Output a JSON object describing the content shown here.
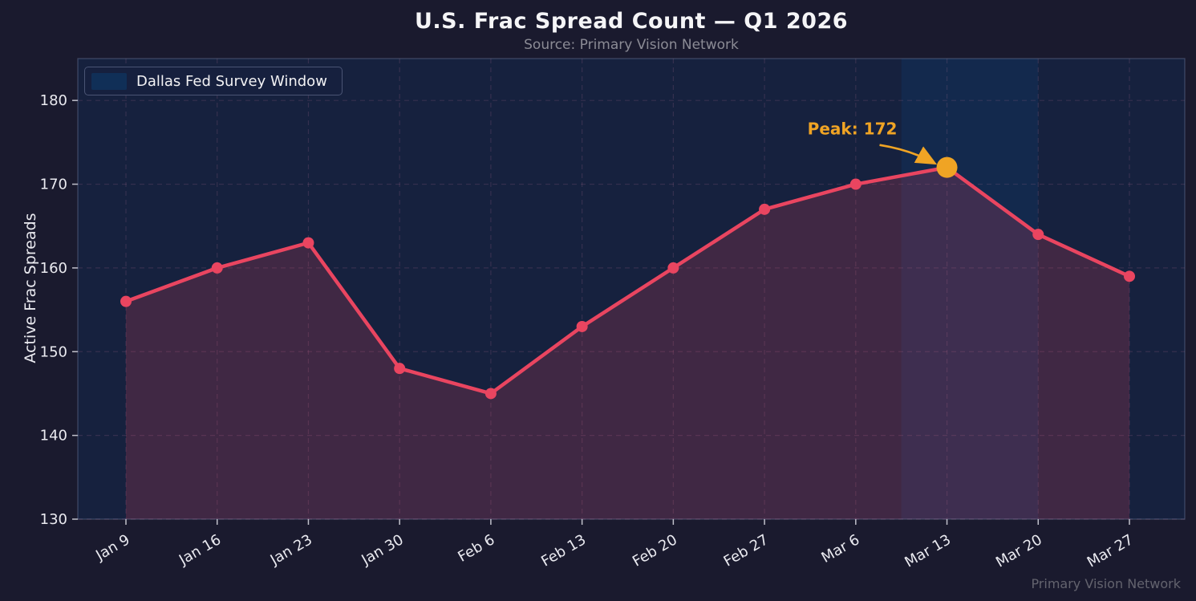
{
  "chart_data": {
    "type": "area",
    "title": "U.S. Frac Spread Count — Q1 2026",
    "subtitle": "Source: Primary Vision Network",
    "ylabel": "Active Frac Spreads",
    "xlabel": "",
    "categories": [
      "Jan 9",
      "Jan 16",
      "Jan 23",
      "Jan 30",
      "Feb 6",
      "Feb 13",
      "Feb 20",
      "Feb 27",
      "Mar 6",
      "Mar 13",
      "Mar 20",
      "Mar 27"
    ],
    "values": [
      156,
      160,
      163,
      148,
      145,
      153,
      160,
      167,
      170,
      172,
      164,
      159
    ],
    "yticks": [
      130,
      140,
      150,
      160,
      170,
      180
    ],
    "ylim": [
      130,
      185
    ],
    "grid": "dashed",
    "legend": {
      "position": "upper-left",
      "items": [
        {
          "label": "Dallas Fed Survey Window",
          "color": "#0f3460"
        }
      ]
    },
    "span": {
      "from_index": 8.5,
      "to_index": 10,
      "color": "#0f3460",
      "opacity": 0.45
    },
    "annotation": {
      "text": "Peak: 172",
      "target_category": "Mar 13",
      "target_value": 172,
      "color": "#f0a424"
    },
    "watermark": "Primary Vision Network",
    "colors": {
      "line": "#e94560",
      "area_opacity": 0.2,
      "marker": "#e94560",
      "peak_marker": "#f0a424",
      "figure_bg": "#1a1a2e",
      "axes_bg": "#16213e",
      "grid": "rgba(220,130,170,0.16)",
      "tick_text": "#eaeaf0",
      "spine": "rgba(160,180,220,0.28)"
    }
  }
}
